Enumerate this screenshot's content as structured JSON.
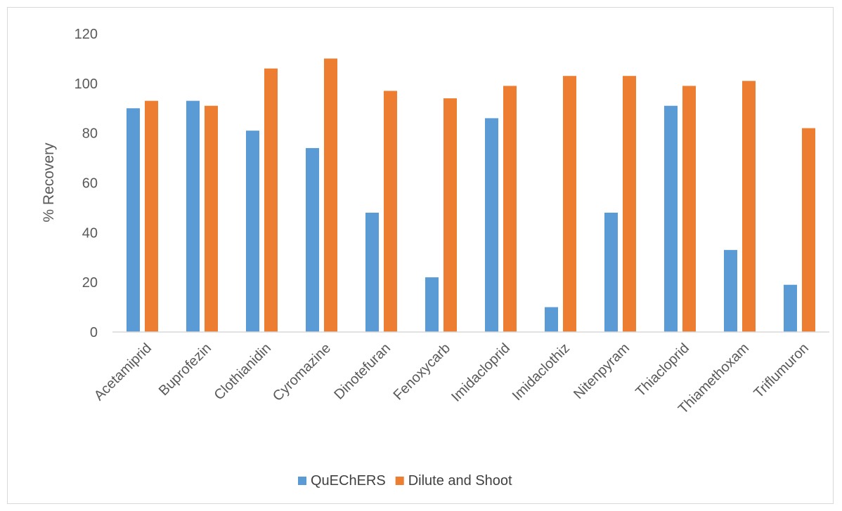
{
  "chart_data": {
    "type": "bar",
    "title": "",
    "xlabel": "",
    "ylabel": "% Recovery",
    "ylim": [
      0,
      120
    ],
    "yticks": [
      0,
      20,
      40,
      60,
      80,
      100,
      120
    ],
    "grid": false,
    "legend_position": "bottom",
    "categories": [
      "Acetamiprid",
      "Buprofezin",
      "Clothianidin",
      "Cyromazine",
      "Dinotefuran",
      "Fenoxycarb",
      "Imidacloprid",
      "Imidaclothiz",
      "Nitenpyram",
      "Thiacloprid",
      "Thiamethoxam",
      "Triflumuron"
    ],
    "series": [
      {
        "name": "QuEChERS",
        "color": "#5b9bd5",
        "values": [
          90,
          93,
          81,
          74,
          48,
          22,
          86,
          10,
          48,
          91,
          33,
          19
        ]
      },
      {
        "name": "Dilute and Shoot",
        "color": "#ed7d31",
        "values": [
          93,
          91,
          106,
          110,
          97,
          94,
          99,
          103,
          103,
          99,
          101,
          82
        ]
      }
    ]
  }
}
